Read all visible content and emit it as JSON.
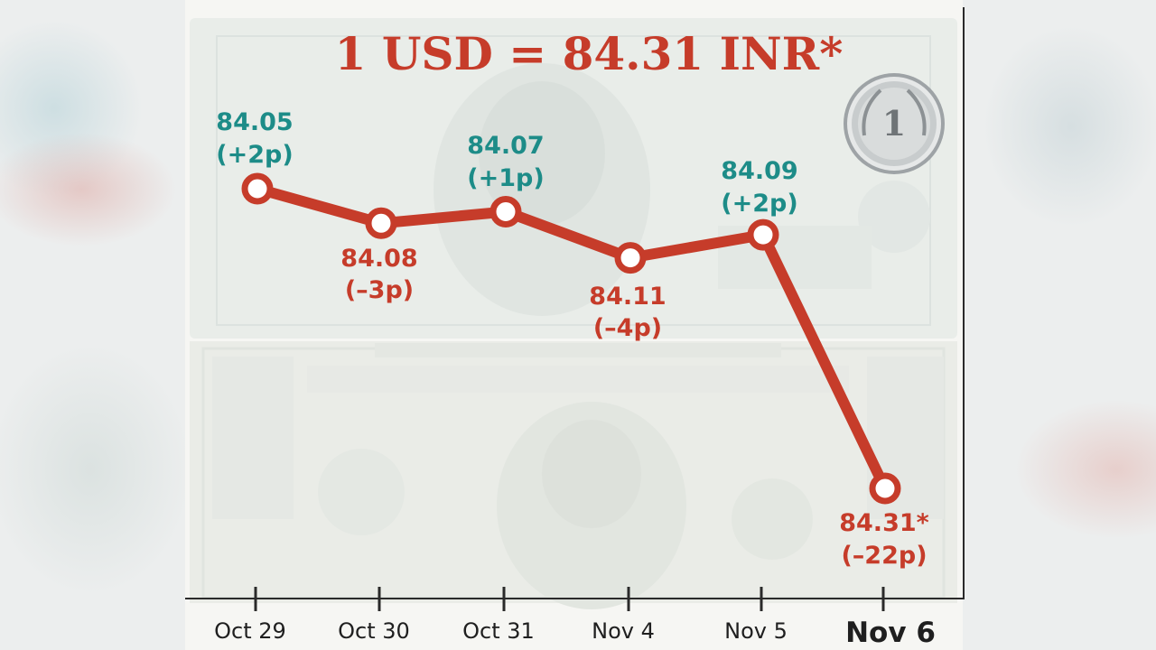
{
  "chart_data": {
    "type": "line",
    "title": "1 USD = 84.31 INR*",
    "categories": [
      "Oct 29",
      "Oct 30",
      "Oct 31",
      "Nov 4",
      "Nov 5",
      "Nov 6"
    ],
    "series": [
      {
        "values": [
          84.05,
          84.08,
          84.07,
          84.11,
          84.09,
          84.31
        ]
      }
    ],
    "data_labels": [
      {
        "value": "84.05",
        "change": "(+2p)"
      },
      {
        "value": "84.08",
        "change": "(–3p)"
      },
      {
        "value": "84.07",
        "change": "(+1p)"
      },
      {
        "value": "84.11",
        "change": "(–4p)"
      },
      {
        "value": "84.09",
        "change": "(+2p)"
      },
      {
        "value": "84.31*",
        "change": "(–22p)"
      }
    ],
    "ylim": [
      84.0,
      84.35
    ],
    "y_inverted": true,
    "grid": false,
    "legend": "none",
    "colors": {
      "line": "#c63c2a",
      "rupee_gain": "#1d8c88",
      "rupee_loss": "#c63c2a"
    }
  }
}
